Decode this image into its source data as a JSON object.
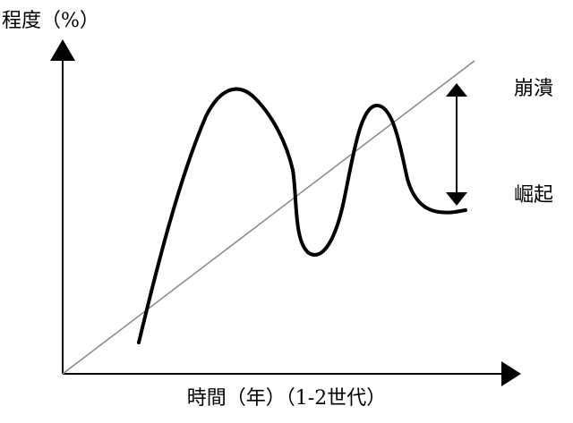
{
  "axes": {
    "y_label": "程度（%）",
    "x_label": "時間（年）（1-2世代）"
  },
  "annotations": {
    "top": "崩潰",
    "bottom": "崛起"
  }
}
